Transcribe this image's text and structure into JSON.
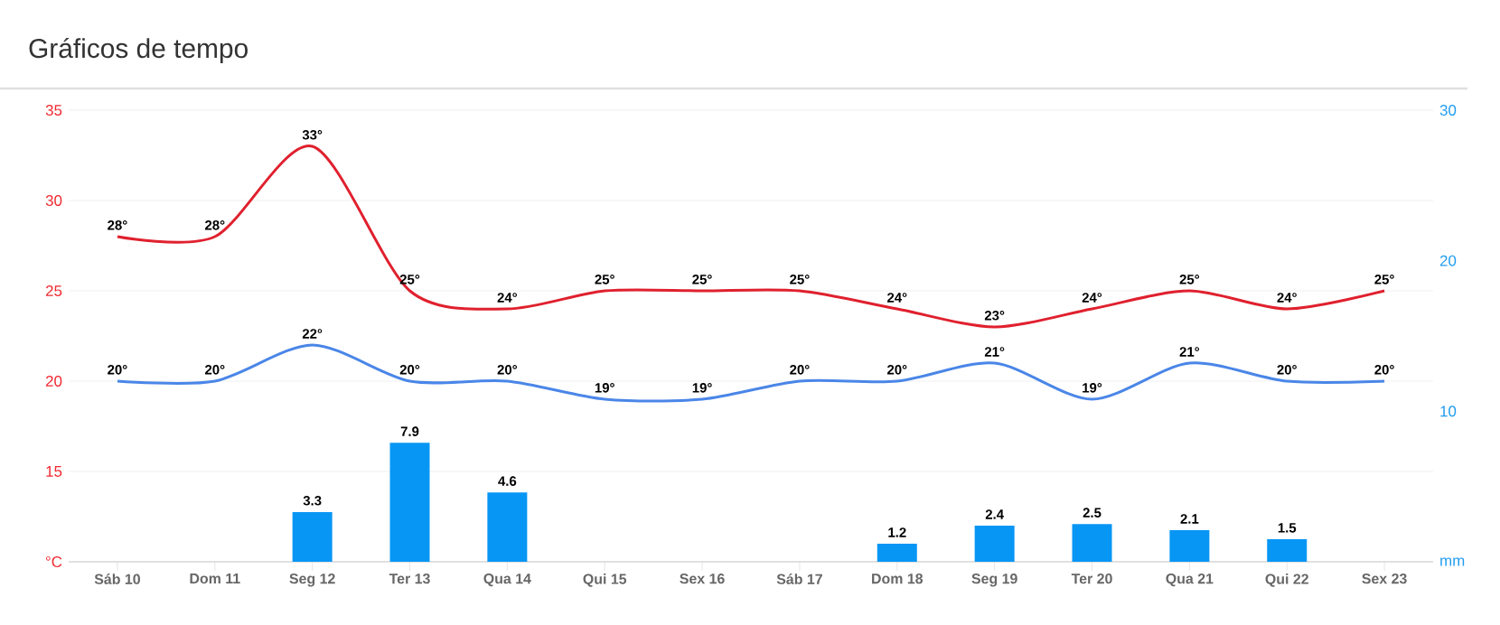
{
  "chart_data": {
    "type": "line",
    "title": "Gráficos de tempo",
    "categories": [
      "Sáb 10",
      "Dom 11",
      "Seg 12",
      "Ter 13",
      "Qua 14",
      "Qui 15",
      "Sex 16",
      "Sáb 17",
      "Dom 18",
      "Seg 19",
      "Ter 20",
      "Qua 21",
      "Qui 22",
      "Sex 23"
    ],
    "series": [
      {
        "color": "#e0202e",
        "values": [
          28,
          28,
          33,
          25,
          24,
          25,
          25,
          25,
          24,
          23,
          24,
          25,
          24,
          25
        ],
        "value_labels": [
          "28°",
          "28°",
          "33°",
          "25°",
          "24°",
          "25°",
          "25°",
          "25°",
          "24°",
          "23°",
          "24°",
          "25°",
          "24°",
          "25°"
        ]
      },
      {
        "color": "#4a86e8",
        "values": [
          20,
          20,
          22,
          20,
          20,
          19,
          19,
          20,
          20,
          21,
          19,
          21,
          20,
          20
        ],
        "value_labels": [
          "20°",
          "20°",
          "22°",
          "20°",
          "20°",
          "19°",
          "19°",
          "20°",
          "20°",
          "21°",
          "19°",
          "21°",
          "20°",
          "20°"
        ]
      },
      {
        "type": "bar",
        "axis": "y2",
        "color": "#0896f5",
        "data_labels": true,
        "values": [
          null,
          null,
          3.3,
          7.9,
          4.6,
          null,
          null,
          null,
          1.2,
          2.4,
          2.5,
          2.1,
          1.5,
          null
        ]
      }
    ],
    "ylim": [
      10,
      35
    ],
    "yticks": [
      {
        "value": 10,
        "label": "°C"
      },
      15,
      20,
      25,
      30,
      35
    ],
    "y2lim": [
      0,
      30
    ],
    "y2ticks": [
      {
        "value": 0,
        "label": "mm"
      },
      10,
      20,
      30
    ],
    "grid": "y"
  }
}
